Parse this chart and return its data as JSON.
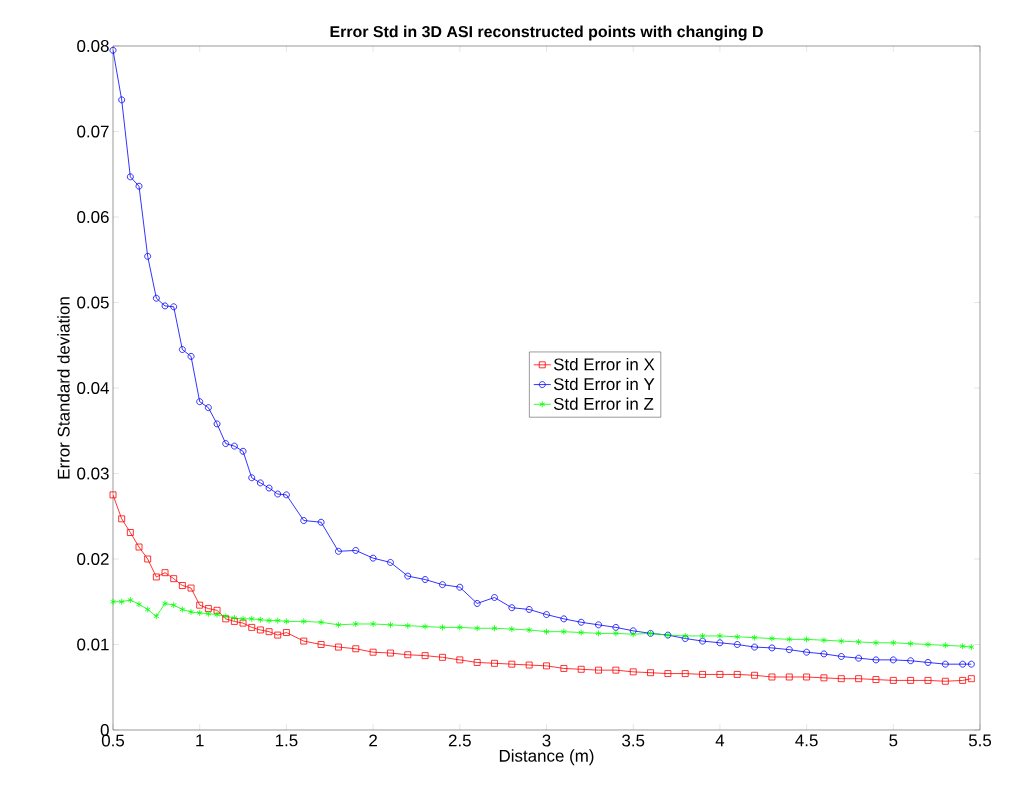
{
  "chart_data": {
    "type": "line",
    "title": "Error Std in 3D ASI reconstructed points with changing D",
    "xlabel": "Distance (m)",
    "ylabel": "Error Standard deviation",
    "x": [
      0.5,
      0.55,
      0.6,
      0.65,
      0.7,
      0.75,
      0.8,
      0.85,
      0.9,
      0.95,
      1.0,
      1.05,
      1.1,
      1.15,
      1.2,
      1.25,
      1.3,
      1.35,
      1.4,
      1.45,
      1.5,
      1.6,
      1.7,
      1.8,
      1.9,
      2.0,
      2.1,
      2.2,
      2.3,
      2.4,
      2.5,
      2.6,
      2.7,
      2.8,
      2.9,
      3.0,
      3.1,
      3.2,
      3.3,
      3.4,
      3.5,
      3.6,
      3.7,
      3.8,
      3.9,
      4.0,
      4.1,
      4.2,
      4.3,
      4.4,
      4.5,
      4.6,
      4.7,
      4.8,
      4.9,
      5.0,
      5.1,
      5.2,
      5.3,
      5.4,
      5.45
    ],
    "series": [
      {
        "name": "Std Error in X",
        "color": "#ff0000",
        "marker": "square",
        "values": [
          0.0275,
          0.0247,
          0.0231,
          0.0214,
          0.02,
          0.0179,
          0.0184,
          0.0177,
          0.0169,
          0.0166,
          0.0146,
          0.0142,
          0.014,
          0.013,
          0.0127,
          0.0125,
          0.012,
          0.0117,
          0.0115,
          0.0111,
          0.0114,
          0.0104,
          0.01,
          0.0097,
          0.0095,
          0.0091,
          0.009,
          0.0088,
          0.0087,
          0.0085,
          0.0082,
          0.0079,
          0.0078,
          0.0077,
          0.0076,
          0.0075,
          0.0072,
          0.0071,
          0.007,
          0.007,
          0.0068,
          0.0067,
          0.0066,
          0.0066,
          0.0065,
          0.0065,
          0.0065,
          0.0064,
          0.0062,
          0.0062,
          0.0062,
          0.0061,
          0.006,
          0.006,
          0.0059,
          0.0058,
          0.0058,
          0.0058,
          0.0057,
          0.0058,
          0.006
        ]
      },
      {
        "name": "Std Error in Y",
        "color": "#0000ff",
        "marker": "circle",
        "values": [
          0.0795,
          0.0737,
          0.0647,
          0.0636,
          0.0554,
          0.0505,
          0.0496,
          0.0495,
          0.0445,
          0.0437,
          0.0384,
          0.0377,
          0.0358,
          0.0335,
          0.0332,
          0.0326,
          0.0295,
          0.0289,
          0.0283,
          0.0276,
          0.0275,
          0.0245,
          0.0243,
          0.0209,
          0.021,
          0.0201,
          0.0196,
          0.018,
          0.0176,
          0.017,
          0.0167,
          0.0148,
          0.0155,
          0.0143,
          0.0141,
          0.0135,
          0.013,
          0.0126,
          0.0123,
          0.012,
          0.0116,
          0.0113,
          0.0111,
          0.0107,
          0.0104,
          0.0102,
          0.01,
          0.0097,
          0.0096,
          0.0094,
          0.0091,
          0.0089,
          0.0086,
          0.0084,
          0.0082,
          0.0082,
          0.0081,
          0.0079,
          0.0077,
          0.0077,
          0.0077
        ]
      },
      {
        "name": "Std Error in Z",
        "color": "#00ff00",
        "marker": "cross",
        "values": [
          0.015,
          0.015,
          0.0152,
          0.0147,
          0.0141,
          0.0133,
          0.0148,
          0.0146,
          0.0141,
          0.0138,
          0.0137,
          0.0136,
          0.0135,
          0.0133,
          0.0131,
          0.013,
          0.013,
          0.0129,
          0.0128,
          0.0128,
          0.0127,
          0.0127,
          0.0126,
          0.0123,
          0.0124,
          0.0124,
          0.0123,
          0.0122,
          0.0121,
          0.012,
          0.012,
          0.0119,
          0.0119,
          0.0118,
          0.0117,
          0.0115,
          0.0115,
          0.0114,
          0.0113,
          0.0113,
          0.0112,
          0.0113,
          0.0111,
          0.011,
          0.011,
          0.011,
          0.0109,
          0.0108,
          0.0107,
          0.0106,
          0.0106,
          0.0105,
          0.0104,
          0.0103,
          0.0102,
          0.0102,
          0.0101,
          0.01,
          0.0099,
          0.0098,
          0.0097
        ]
      }
    ],
    "xlim": [
      0.5,
      5.5
    ],
    "xticks": [
      0.5,
      1,
      1.5,
      2,
      2.5,
      3,
      3.5,
      4,
      4.5,
      5,
      5.5
    ],
    "ylim": [
      0,
      0.08
    ],
    "yticks": [
      0,
      0.01,
      0.02,
      0.03,
      0.04,
      0.05,
      0.06,
      0.07,
      0.08
    ],
    "grid": false,
    "legend": "right",
    "line_style": "solid"
  }
}
